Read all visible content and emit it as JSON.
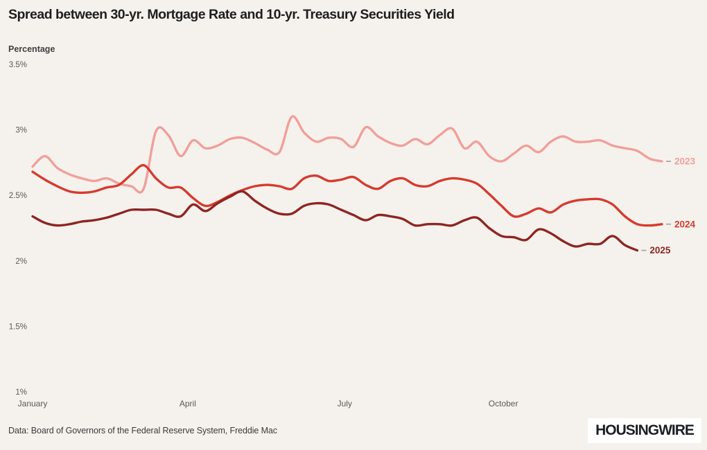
{
  "chart_data": {
    "type": "line",
    "title": "Spread between 30-yr. Mortgage Rate and 10-yr. Treasury Securities Yield",
    "ylabel": "Percentage",
    "xlabel": "",
    "x_tick_labels": [
      "January",
      "April",
      "July",
      "October"
    ],
    "y_tick_labels": [
      "3.5%",
      "3%",
      "2.5%",
      "2%",
      "1.5%",
      "1%"
    ],
    "y_tick_values": [
      3.5,
      3.0,
      2.5,
      2.0,
      1.5,
      1.0
    ],
    "ylim": [
      1.0,
      3.5
    ],
    "x_unit": "week-of-year",
    "weeks_per_year": 52,
    "grid": false,
    "legend_position": "line-end-right",
    "series": [
      {
        "name": "2023",
        "color": "#f19f9b",
        "values": [
          2.72,
          2.8,
          2.71,
          2.66,
          2.63,
          2.61,
          2.63,
          2.59,
          2.57,
          2.55,
          2.99,
          2.96,
          2.8,
          2.92,
          2.86,
          2.88,
          2.93,
          2.94,
          2.9,
          2.85,
          2.83,
          3.1,
          2.98,
          2.91,
          2.94,
          2.93,
          2.87,
          3.02,
          2.95,
          2.9,
          2.88,
          2.93,
          2.89,
          2.96,
          3.01,
          2.86,
          2.91,
          2.8,
          2.76,
          2.82,
          2.88,
          2.83,
          2.91,
          2.95,
          2.91,
          2.91,
          2.92,
          2.88,
          2.86,
          2.84,
          2.78,
          2.76
        ]
      },
      {
        "name": "2024",
        "color": "#d63a2e",
        "values": [
          2.68,
          2.62,
          2.57,
          2.53,
          2.52,
          2.53,
          2.56,
          2.58,
          2.66,
          2.73,
          2.63,
          2.56,
          2.56,
          2.48,
          2.42,
          2.45,
          2.5,
          2.54,
          2.57,
          2.58,
          2.57,
          2.55,
          2.63,
          2.65,
          2.61,
          2.62,
          2.64,
          2.58,
          2.55,
          2.61,
          2.63,
          2.58,
          2.57,
          2.61,
          2.63,
          2.62,
          2.59,
          2.51,
          2.42,
          2.34,
          2.36,
          2.4,
          2.37,
          2.43,
          2.46,
          2.47,
          2.47,
          2.43,
          2.34,
          2.28,
          2.27,
          2.28
        ]
      },
      {
        "name": "2025",
        "color": "#8e2522",
        "values": [
          2.34,
          2.29,
          2.27,
          2.28,
          2.3,
          2.31,
          2.33,
          2.36,
          2.39,
          2.39,
          2.39,
          2.36,
          2.34,
          2.43,
          2.38,
          2.44,
          2.49,
          2.53,
          2.46,
          2.4,
          2.36,
          2.36,
          2.42,
          2.44,
          2.43,
          2.39,
          2.35,
          2.31,
          2.35,
          2.34,
          2.32,
          2.27,
          2.28,
          2.28,
          2.27,
          2.31,
          2.33,
          2.25,
          2.19,
          2.18,
          2.16,
          2.24,
          2.21,
          2.15,
          2.11,
          2.13,
          2.13,
          2.19,
          2.12,
          2.08
        ]
      }
    ]
  },
  "footer": {
    "source_note": "Data: Board of Governors of the Federal Reserve System, Freddie Mac",
    "logo_text": "HOUSINGWIRE"
  },
  "colors": {
    "background": "#f5f2ed",
    "title_text": "#1e1e1e",
    "axis_text": "#585858",
    "label_dash": "#b3ada7",
    "logo_bg": "#ffffff",
    "logo_text": "#1c1f24"
  }
}
